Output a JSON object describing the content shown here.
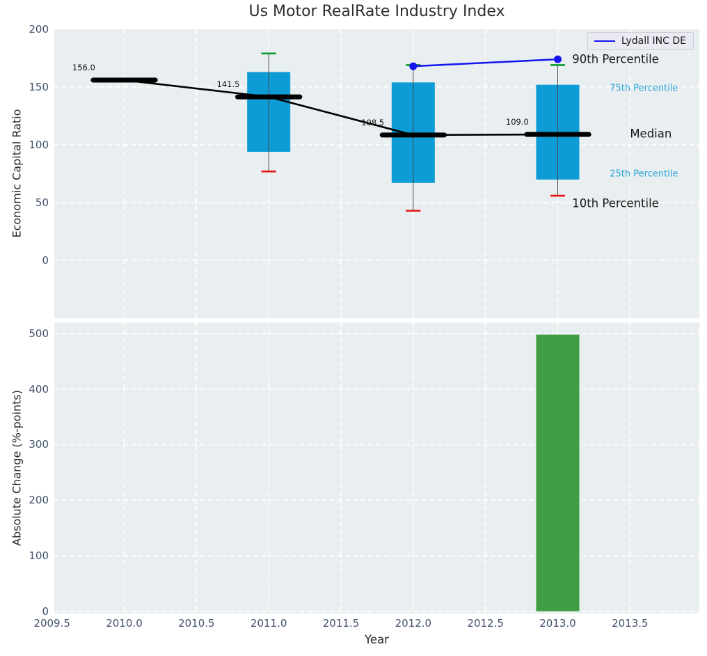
{
  "title": "Us Motor RealRate Industry Index",
  "legend": {
    "label": "Lydall INC DE",
    "line_color": "#1414ee"
  },
  "colors": {
    "figure_bg": "#ffffff",
    "plot_bg": "#e9eef0",
    "grid": "#ffffff",
    "box_fill": "#0d9cd6",
    "bar_fill": "#3f9e43",
    "whisker": "#4a4a4a",
    "cap_high": "#089b2a",
    "cap_low": "#e81010",
    "median": "#000000",
    "company_line": "#1414ee",
    "tick_text": "#42536a",
    "percentile_accent": "#2aa6d9"
  },
  "chart_data": [
    {
      "type": "boxplot",
      "ylabel": "Economic Capital Ratio",
      "ylim": [
        -50,
        200
      ],
      "xlim": [
        2009.516,
        2013.98
      ],
      "yticks": [
        0,
        50,
        100,
        150,
        200
      ],
      "xticks": [
        2009.5,
        2010.0,
        2010.5,
        2011.0,
        2011.5,
        2012.0,
        2012.5,
        2013.0,
        2013.5
      ],
      "grid": true,
      "boxes": [
        {
          "year": 2010,
          "median": 156.0,
          "annotation": "156.0"
        },
        {
          "year": 2011,
          "median": 141.5,
          "q1": 94,
          "q3": 163,
          "p10": 77,
          "p90": 179,
          "annotation": "141.5"
        },
        {
          "year": 2012,
          "median": 108.5,
          "q1": 67,
          "q3": 154,
          "p10": 43,
          "p90": 169,
          "annotation": "108.5"
        },
        {
          "year": 2013,
          "median": 109.0,
          "q1": 70,
          "q3": 152,
          "p10": 56,
          "p90": 169,
          "annotation": "109.0"
        }
      ],
      "median_series": {
        "x": [
          2010,
          2011,
          2012,
          2013
        ],
        "y": [
          156.0,
          141.5,
          108.5,
          109.0
        ]
      },
      "company_series": {
        "name": "Lydall INC DE",
        "x": [
          2012,
          2013
        ],
        "y": [
          168,
          174
        ]
      },
      "percentile_labels": [
        {
          "text": "90th Percentile",
          "x": 2013.1,
          "y": 174.0,
          "color": "#1a1a1a",
          "size": 16.5
        },
        {
          "text": "75th Percentile",
          "x": 2013.36,
          "y": 149.0,
          "color": "#2aa6d9",
          "size": 13
        },
        {
          "text": "Median",
          "x": 2013.5,
          "y": 109.5,
          "color": "#1a1a1a",
          "size": 16.5
        },
        {
          "text": "25th Percentile",
          "x": 2013.36,
          "y": 74.5,
          "color": "#2aa6d9",
          "size": 13
        },
        {
          "text": "10th Percentile",
          "x": 2013.1,
          "y": 49.5,
          "color": "#1a1a1a",
          "size": 16.5
        }
      ]
    },
    {
      "type": "bar",
      "ylabel": "Absolute Change (%-points)",
      "xlabel": "Year",
      "ylim": [
        -4,
        520
      ],
      "xlim": [
        2009.516,
        2013.98
      ],
      "yticks": [
        0,
        100,
        200,
        300,
        400,
        500
      ],
      "xticks": [
        2009.5,
        2010.0,
        2010.5,
        2011.0,
        2011.5,
        2012.0,
        2012.5,
        2013.0,
        2013.5
      ],
      "grid": true,
      "bars": [
        {
          "year": 2013,
          "value": 498
        }
      ]
    }
  ]
}
